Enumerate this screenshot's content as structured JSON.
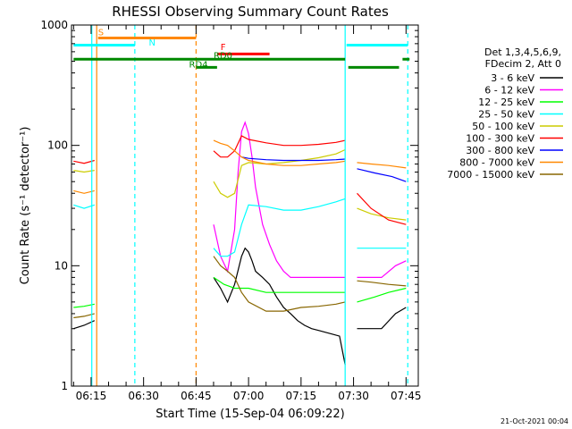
{
  "chart_data": {
    "type": "line",
    "title": "RHESSI Observing Summary Count Rates",
    "ylabel": "Count Rate (s⁻¹ detector⁻¹)",
    "xlabel": "Start Time (15-Sep-04 06:09:22)",
    "yscale": "log",
    "ylim": [
      1,
      1000
    ],
    "xlim_minutes": [
      369.4,
      468.5
    ],
    "y_ticks": [
      {
        "value": 1,
        "label": "1"
      },
      {
        "value": 10,
        "label": "10"
      },
      {
        "value": 100,
        "label": "100"
      },
      {
        "value": 1000,
        "label": "1000"
      }
    ],
    "x_ticks": [
      {
        "value": 375,
        "label": "06:15"
      },
      {
        "value": 390,
        "label": "06:30"
      },
      {
        "value": 405,
        "label": "06:45"
      },
      {
        "value": 420,
        "label": "07:00"
      },
      {
        "value": 435,
        "label": "07:15"
      },
      {
        "value": 450,
        "label": "07:30"
      },
      {
        "value": 465,
        "label": "07:45"
      }
    ],
    "legend_header": [
      "Det 1,3,4,5,6,9,",
      "FDecim 2, Att 0"
    ],
    "legend_position": "right",
    "timestamp": "21-Oct-2021 00:04",
    "series": [
      {
        "name": "3 - 6 keV",
        "color": "#000000",
        "segments": [
          [
            [
              370,
              3
            ],
            [
              373,
              3.2
            ],
            [
              376,
              3.5
            ]
          ],
          [
            [
              410,
              8
            ],
            [
              412,
              6.5
            ],
            [
              414,
              5
            ],
            [
              416,
              7
            ],
            [
              418,
              12
            ],
            [
              419,
              14
            ],
            [
              420,
              13
            ],
            [
              421,
              11
            ],
            [
              422,
              9
            ],
            [
              424,
              8
            ],
            [
              426,
              7
            ],
            [
              428,
              5.5
            ],
            [
              430,
              4.5
            ],
            [
              432,
              4
            ],
            [
              434,
              3.5
            ],
            [
              436,
              3.2
            ],
            [
              438,
              3
            ],
            [
              440,
              2.9
            ],
            [
              442,
              2.8
            ],
            [
              444,
              2.7
            ],
            [
              446,
              2.6
            ],
            [
              447.6,
              1.5
            ]
          ],
          [
            [
              451,
              3
            ],
            [
              458,
              3
            ],
            [
              462,
              4
            ],
            [
              465,
              4.5
            ]
          ]
        ]
      },
      {
        "name": "6 - 12 keV",
        "color": "#ff00ff",
        "segments": [
          [
            [
              410,
              22
            ],
            [
              412,
              12
            ],
            [
              414,
              9
            ],
            [
              416,
              20
            ],
            [
              417,
              60
            ],
            [
              418,
              130
            ],
            [
              419,
              155
            ],
            [
              420,
              125
            ],
            [
              421,
              80
            ],
            [
              422,
              45
            ],
            [
              424,
              22
            ],
            [
              426,
              15
            ],
            [
              428,
              11
            ],
            [
              430,
              9
            ],
            [
              432,
              8
            ],
            [
              434,
              8
            ],
            [
              436,
              8
            ],
            [
              438,
              8
            ],
            [
              440,
              8
            ],
            [
              442,
              8
            ],
            [
              444,
              8
            ],
            [
              446,
              8
            ],
            [
              447.6,
              8
            ]
          ],
          [
            [
              451,
              8
            ],
            [
              458,
              8
            ],
            [
              462,
              10
            ],
            [
              465,
              11
            ]
          ]
        ]
      },
      {
        "name": "12 - 25 keV",
        "color": "#00ff00",
        "segments": [
          [
            [
              370,
              4.5
            ],
            [
              373,
              4.6
            ],
            [
              376,
              4.8
            ]
          ],
          [
            [
              410,
              8
            ],
            [
              413,
              7
            ],
            [
              416,
              6.5
            ],
            [
              420,
              6.5
            ],
            [
              425,
              6
            ],
            [
              430,
              6
            ],
            [
              435,
              6
            ],
            [
              440,
              6
            ],
            [
              445,
              6
            ],
            [
              447.6,
              6
            ]
          ],
          [
            [
              451,
              5
            ],
            [
              456,
              5.5
            ],
            [
              460,
              6
            ],
            [
              465,
              6.5
            ]
          ]
        ]
      },
      {
        "name": "25 - 50 keV",
        "color": "#00ffff",
        "segments": [
          [
            [
              370,
              32
            ],
            [
              373,
              30
            ],
            [
              376,
              32
            ]
          ],
          [
            [
              410,
              14
            ],
            [
              412,
              12
            ],
            [
              414,
              12
            ],
            [
              416,
              13
            ],
            [
              418,
              22
            ],
            [
              420,
              32
            ],
            [
              425,
              31
            ],
            [
              430,
              29
            ],
            [
              435,
              29
            ],
            [
              440,
              31
            ],
            [
              445,
              34
            ],
            [
              447.6,
              36
            ]
          ],
          [
            [
              451,
              14
            ],
            [
              455,
              14
            ],
            [
              460,
              14
            ],
            [
              465,
              14
            ]
          ]
        ]
      },
      {
        "name": "50 - 100 keV",
        "color": "#cccc00",
        "segments": [
          [
            [
              370,
              62
            ],
            [
              373,
              60
            ],
            [
              376,
              62
            ]
          ],
          [
            [
              410,
              50
            ],
            [
              412,
              40
            ],
            [
              414,
              37
            ],
            [
              416,
              40
            ],
            [
              418,
              68
            ],
            [
              420,
              72
            ],
            [
              425,
              70
            ],
            [
              430,
              72
            ],
            [
              435,
              75
            ],
            [
              440,
              79
            ],
            [
              445,
              85
            ],
            [
              447.6,
              92
            ]
          ],
          [
            [
              451,
              30
            ],
            [
              455,
              27
            ],
            [
              460,
              25
            ],
            [
              465,
              24
            ]
          ]
        ]
      },
      {
        "name": "100 - 300 keV",
        "color": "#ff0000",
        "segments": [
          [
            [
              370,
              74
            ],
            [
              373,
              71
            ],
            [
              376,
              75
            ]
          ],
          [
            [
              410,
              90
            ],
            [
              412,
              80
            ],
            [
              414,
              80
            ],
            [
              416,
              90
            ],
            [
              418,
              120
            ],
            [
              420,
              112
            ],
            [
              425,
              105
            ],
            [
              430,
              100
            ],
            [
              435,
              100
            ],
            [
              440,
              102
            ],
            [
              445,
              106
            ],
            [
              447.6,
              110
            ]
          ],
          [
            [
              451,
              40
            ],
            [
              455,
              30
            ],
            [
              460,
              24
            ],
            [
              465,
              22
            ]
          ]
        ]
      },
      {
        "name": "300 - 800 keV",
        "color": "#0000ff",
        "segments": [
          [
            [
              418,
              80
            ],
            [
              420,
              78
            ],
            [
              425,
              76
            ],
            [
              430,
              75
            ],
            [
              435,
              75
            ],
            [
              440,
              75
            ],
            [
              445,
              76
            ],
            [
              447.6,
              77
            ]
          ],
          [
            [
              451,
              64
            ],
            [
              456,
              59
            ],
            [
              461,
              55
            ],
            [
              465,
              50
            ]
          ]
        ]
      },
      {
        "name": "800 - 7000 keV",
        "color": "#ff8800",
        "segments": [
          [
            [
              370,
              42
            ],
            [
              373,
              40
            ],
            [
              376,
              42
            ]
          ],
          [
            [
              410,
              110
            ],
            [
              412,
              104
            ],
            [
              414,
              100
            ],
            [
              416,
              90
            ],
            [
              418,
              80
            ],
            [
              420,
              75
            ],
            [
              425,
              70
            ],
            [
              430,
              68
            ],
            [
              435,
              68
            ],
            [
              440,
              70
            ],
            [
              445,
              72
            ],
            [
              447.6,
              74
            ]
          ],
          [
            [
              451,
              72
            ],
            [
              455,
              70
            ],
            [
              460,
              68
            ],
            [
              465,
              65
            ]
          ]
        ]
      },
      {
        "name": "7000 - 15000 keV",
        "color": "#886600",
        "segments": [
          [
            [
              370,
              3.7
            ],
            [
              373,
              3.8
            ],
            [
              376,
              4
            ]
          ],
          [
            [
              410,
              12
            ],
            [
              412,
              10
            ],
            [
              414,
              9
            ],
            [
              416,
              8
            ],
            [
              418,
              6
            ],
            [
              420,
              5
            ],
            [
              425,
              4.2
            ],
            [
              430,
              4.2
            ],
            [
              435,
              4.5
            ],
            [
              440,
              4.6
            ],
            [
              445,
              4.8
            ],
            [
              447.6,
              5
            ]
          ],
          [
            [
              451,
              7.5
            ],
            [
              455,
              7.3
            ],
            [
              460,
              7
            ],
            [
              465,
              6.8
            ]
          ]
        ]
      }
    ],
    "annotations": [
      {
        "label": "S",
        "color": "#ff8800",
        "x": 377,
        "y": 780
      },
      {
        "label": "N",
        "color": "#00ffff",
        "x": 391.5,
        "y": 640
      },
      {
        "label": "F",
        "color": "#ff0000",
        "x": 412,
        "y": 590
      },
      {
        "label": "RD0",
        "color": "#008800",
        "x": 410,
        "y": 500
      },
      {
        "label": "RD4",
        "color": "#008800",
        "x": 403,
        "y": 420
      }
    ],
    "flag_bars": [
      {
        "name": "S",
        "color": "#ff8800",
        "x_start": 377,
        "x_end": 405,
        "y": 780
      },
      {
        "name": "N",
        "color": "#00ffff",
        "x_start": 370,
        "x_end": 387.5,
        "y": 680
      },
      {
        "name": "N",
        "color": "#00ffff",
        "x_start": 448,
        "x_end": 465.5,
        "y": 680
      },
      {
        "name": "F",
        "color": "#ff0000",
        "x_start": 411,
        "x_end": 426,
        "y": 575
      },
      {
        "name": "RD0",
        "color": "#008800",
        "x_start": 370,
        "x_end": 447.6,
        "y": 520
      },
      {
        "name": "RD0",
        "color": "#008800",
        "x_start": 464,
        "x_end": 466,
        "y": 520
      },
      {
        "name": "RD4",
        "color": "#008800",
        "x_start": 405,
        "x_end": 411,
        "y": 445
      },
      {
        "name": "RD4",
        "color": "#008800",
        "x_start": 448.5,
        "x_end": 463,
        "y": 445
      }
    ],
    "vertical_markers": [
      {
        "x": 375.2,
        "color": "#00ffff",
        "style": "solid"
      },
      {
        "x": 376.6,
        "color": "#ff8800",
        "style": "solid"
      },
      {
        "x": 387.5,
        "color": "#00ffff",
        "style": "dashed"
      },
      {
        "x": 405.0,
        "color": "#ff8800",
        "style": "dashed"
      },
      {
        "x": 447.6,
        "color": "#00ffff",
        "style": "solid"
      },
      {
        "x": 465.5,
        "color": "#00ffff",
        "style": "dashed"
      }
    ]
  }
}
